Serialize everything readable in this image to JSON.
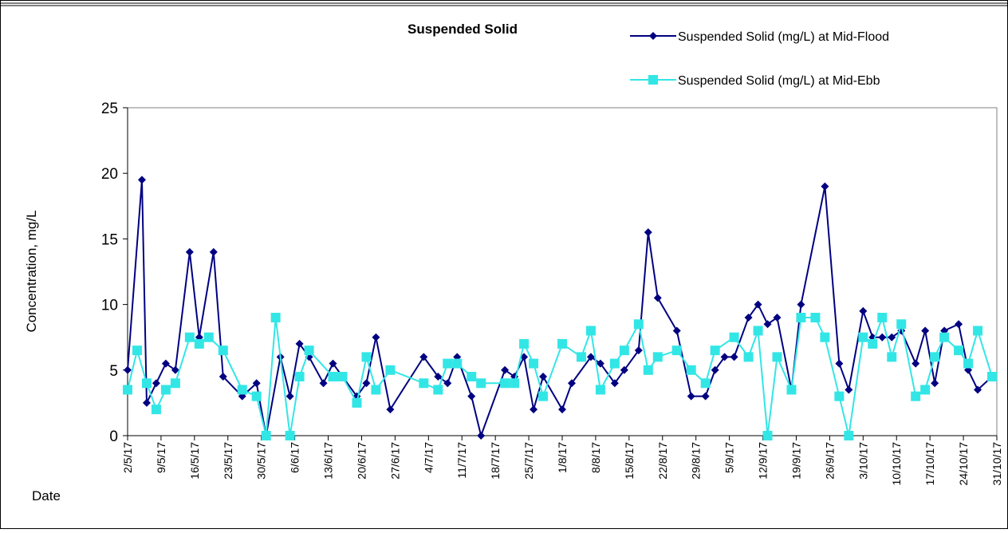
{
  "chart_data": {
    "type": "line",
    "title": "Suspended Solid",
    "ylabel": "Concentration, mg/L",
    "xlabel": "Date",
    "xlim": [
      "2/5/17",
      "31/10/17"
    ],
    "xticks": [
      "2/5/17",
      "9/5/17",
      "16/5/17",
      "23/5/17",
      "30/5/17",
      "6/6/17",
      "13/6/17",
      "20/6/17",
      "27/6/17",
      "4/7/17",
      "11/7/17",
      "18/7/17",
      "25/7/17",
      "1/8/17",
      "8/8/17",
      "15/8/17",
      "22/8/17",
      "29/8/17",
      "5/9/17",
      "12/9/17",
      "19/9/17",
      "26/9/17",
      "3/10/17",
      "10/10/17",
      "17/10/17",
      "24/10/17",
      "31/10/17"
    ],
    "ylim": [
      0,
      25
    ],
    "yticks": [
      0,
      5,
      10,
      15,
      20,
      25
    ],
    "series": [
      {
        "name": "Suspended Solid (mg/L) at Mid-Flood",
        "color": "#000080",
        "marker": "diamond",
        "x": [
          "2/5/17",
          "5/5/17",
          "6/5/17",
          "8/5/17",
          "10/5/17",
          "12/5/17",
          "15/5/17",
          "17/5/17",
          "20/5/17",
          "22/5/17",
          "26/5/17",
          "29/5/17",
          "31/5/17",
          "3/6/17",
          "5/6/17",
          "7/6/17",
          "9/6/17",
          "12/6/17",
          "14/6/17",
          "16/6/17",
          "19/6/17",
          "21/6/17",
          "23/6/17",
          "26/6/17",
          "3/7/17",
          "6/7/17",
          "8/7/17",
          "10/7/17",
          "13/7/17",
          "15/7/17",
          "20/7/17",
          "22/7/17",
          "24/7/17",
          "26/7/17",
          "28/7/17",
          "1/8/17",
          "3/8/17",
          "7/8/17",
          "9/8/17",
          "12/8/17",
          "14/8/17",
          "17/8/17",
          "19/8/17",
          "21/8/17",
          "25/8/17",
          "28/8/17",
          "31/8/17",
          "2/9/17",
          "4/9/17",
          "6/9/17",
          "9/9/17",
          "11/9/17",
          "13/9/17",
          "15/9/17",
          "18/9/17",
          "20/9/17",
          "25/9/17",
          "28/9/17",
          "30/9/17",
          "3/10/17",
          "5/10/17",
          "7/10/17",
          "9/10/17",
          "11/10/17",
          "14/10/17",
          "16/10/17",
          "18/10/17",
          "20/10/17",
          "23/10/17",
          "25/10/17",
          "27/10/17",
          "30/10/17"
        ],
        "values": [
          5,
          19.5,
          2.5,
          4,
          5.5,
          5,
          14,
          7.5,
          14,
          4.5,
          3,
          4,
          0,
          6,
          3,
          7,
          6,
          4,
          5.5,
          4.5,
          3,
          4,
          7.5,
          2,
          6,
          4.5,
          4,
          6,
          3,
          0,
          5,
          4.5,
          6,
          2,
          4.5,
          2,
          4,
          6,
          5.5,
          4,
          5,
          6.5,
          15.5,
          10.5,
          8,
          3,
          3,
          5,
          6,
          6,
          9,
          10,
          8.5,
          9,
          3.5,
          10,
          19,
          5.5,
          3.5,
          9.5,
          7.5,
          7.5,
          7.5,
          8,
          5.5,
          8,
          4,
          8,
          8.5,
          5,
          3.5,
          4.5
        ]
      },
      {
        "name": "Suspended Solid (mg/L) at Mid-Ebb",
        "color": "#33e6e6",
        "marker": "square",
        "x": [
          "2/5/17",
          "4/5/17",
          "6/5/17",
          "8/5/17",
          "10/5/17",
          "12/5/17",
          "15/5/17",
          "17/5/17",
          "19/5/17",
          "22/5/17",
          "26/5/17",
          "29/5/17",
          "31/5/17",
          "2/6/17",
          "5/6/17",
          "7/6/17",
          "9/6/17",
          "14/6/17",
          "16/6/17",
          "19/6/17",
          "21/6/17",
          "23/6/17",
          "26/6/17",
          "3/7/17",
          "6/7/17",
          "8/7/17",
          "10/7/17",
          "13/7/17",
          "15/7/17",
          "20/7/17",
          "22/7/17",
          "24/7/17",
          "26/7/17",
          "28/7/17",
          "1/8/17",
          "5/8/17",
          "7/8/17",
          "9/8/17",
          "12/8/17",
          "14/8/17",
          "17/8/17",
          "19/8/17",
          "21/8/17",
          "25/8/17",
          "28/8/17",
          "31/8/17",
          "2/9/17",
          "6/9/17",
          "9/9/17",
          "11/9/17",
          "13/9/17",
          "15/9/17",
          "18/9/17",
          "20/9/17",
          "23/9/17",
          "25/9/17",
          "28/9/17",
          "30/9/17",
          "3/10/17",
          "5/10/17",
          "7/10/17",
          "9/10/17",
          "11/10/17",
          "14/10/17",
          "16/10/17",
          "18/10/17",
          "20/10/17",
          "23/10/17",
          "25/10/17",
          "27/10/17",
          "30/10/17"
        ],
        "values": [
          3.5,
          6.5,
          4,
          2,
          3.5,
          4,
          7.5,
          7,
          7.5,
          6.5,
          3.5,
          3,
          0,
          9,
          0,
          4.5,
          6.5,
          4.5,
          4.5,
          2.5,
          6,
          3.5,
          5,
          4,
          3.5,
          5.5,
          5.5,
          4.5,
          4,
          4,
          4,
          7,
          5.5,
          3,
          7,
          6,
          8,
          3.5,
          5.5,
          6.5,
          8.5,
          5,
          6,
          6.5,
          5,
          4,
          6.5,
          7.5,
          6,
          8,
          0,
          6,
          3.5,
          9,
          9,
          7.5,
          3,
          0,
          7.5,
          7,
          9,
          6,
          8.5,
          3,
          3.5,
          6,
          7.5,
          6.5,
          5.5,
          8,
          4.5
        ]
      }
    ]
  }
}
